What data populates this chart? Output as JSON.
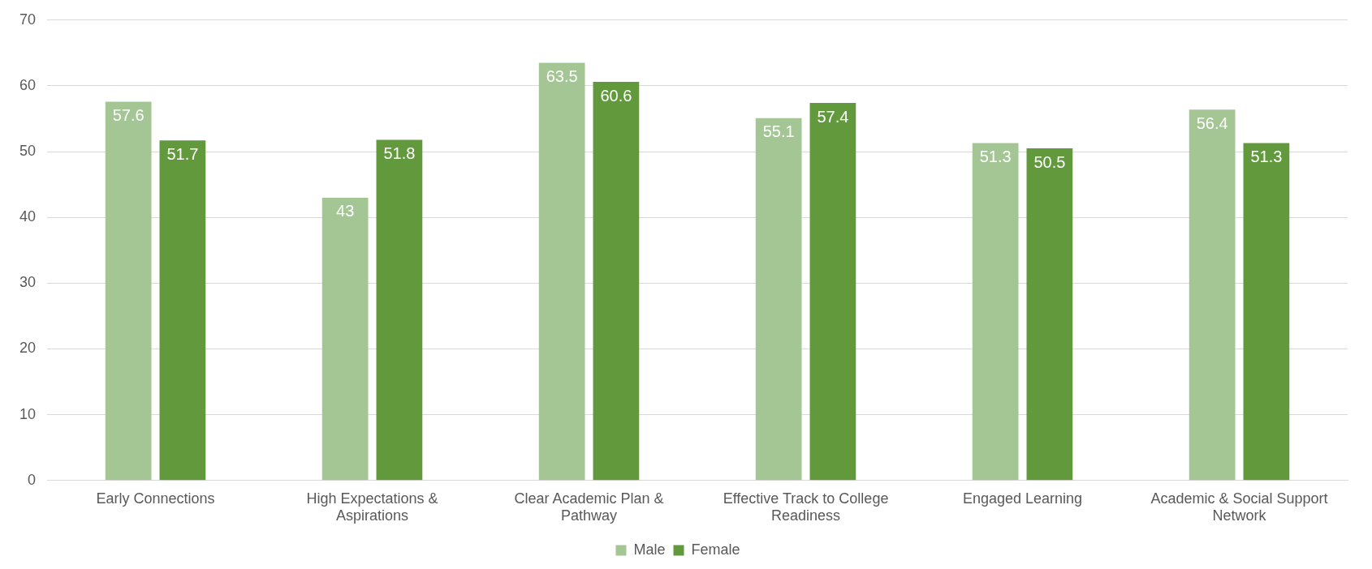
{
  "chart_data": {
    "type": "bar",
    "categories": [
      "Early Connections",
      "High Expectations & Aspirations",
      "Clear Academic Plan & Pathway",
      "Effective Track to College Readiness",
      "Engaged Learning",
      "Academic & Social Support Network"
    ],
    "series": [
      {
        "name": "Male",
        "color": "#a4c594",
        "values": [
          57.6,
          43,
          63.5,
          55.1,
          51.3,
          56.4
        ]
      },
      {
        "name": "Female",
        "color": "#63993d",
        "values": [
          51.7,
          51.8,
          60.6,
          57.4,
          50.5,
          51.3
        ]
      }
    ],
    "ylim": [
      0,
      70
    ],
    "yticks": [
      0,
      10,
      20,
      30,
      40,
      50,
      60,
      70
    ],
    "grid": "y",
    "legend": "bottom",
    "data_labels": true
  }
}
